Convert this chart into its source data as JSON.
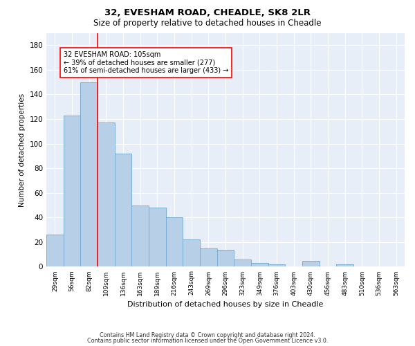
{
  "title1": "32, EVESHAM ROAD, CHEADLE, SK8 2LR",
  "title2": "Size of property relative to detached houses in Cheadle",
  "xlabel": "Distribution of detached houses by size in Cheadle",
  "ylabel": "Number of detached properties",
  "bar_vals": [
    26,
    123,
    150,
    117,
    92,
    50,
    48,
    40,
    22,
    15,
    14,
    6,
    3,
    2,
    0,
    5,
    0,
    2,
    0,
    0,
    0
  ],
  "bar_labels": [
    "29sqm",
    "56sqm",
    "82sqm",
    "109sqm",
    "136sqm",
    "163sqm",
    "189sqm",
    "216sqm",
    "243sqm",
    "269sqm",
    "296sqm",
    "323sqm",
    "349sqm",
    "376sqm",
    "403sqm",
    "430sqm",
    "456sqm",
    "483sqm",
    "510sqm",
    "536sqm",
    "563sqm"
  ],
  "property_line_x": 2.5,
  "annotation_line1": "32 EVESHAM ROAD: 105sqm",
  "annotation_line2": "← 39% of detached houses are smaller (277)",
  "annotation_line3": "61% of semi-detached houses are larger (433) →",
  "ylim": [
    0,
    190
  ],
  "yticks": [
    0,
    20,
    40,
    60,
    80,
    100,
    120,
    140,
    160,
    180
  ],
  "bar_color": "#b8cfe8",
  "bar_edgecolor": "#7aadd4",
  "line_color": "red",
  "bg_color": "#e8eef8",
  "grid_color": "white",
  "footer1": "Contains HM Land Registry data © Crown copyright and database right 2024.",
  "footer2": "Contains public sector information licensed under the Open Government Licence v3.0."
}
